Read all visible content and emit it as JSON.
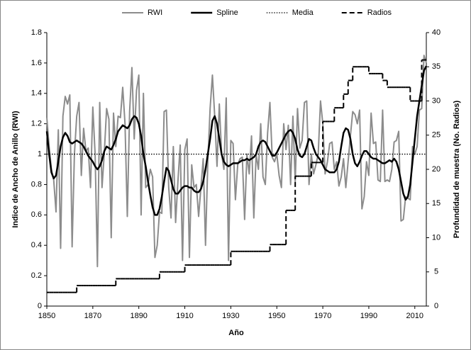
{
  "chart_data": {
    "type": "line",
    "x_label": "Año",
    "y_label": "Indice de Ancho de Anillo (RWI)",
    "y2_label": "Profundidad de muestra (No. Radios)",
    "legend": "top",
    "xlim": [
      1850,
      2015
    ],
    "xticks": [
      1850,
      1870,
      1890,
      1910,
      1930,
      1950,
      1970,
      1990,
      2010
    ],
    "ylim": [
      0,
      1.8
    ],
    "yticks": [
      0,
      0.2,
      0.4,
      0.6,
      0.8,
      1,
      1.2,
      1.4,
      1.6,
      1.8
    ],
    "y2lim": [
      0,
      40
    ],
    "y2ticks": [
      0,
      5,
      10,
      15,
      20,
      25,
      30,
      35,
      40
    ],
    "x": [
      1850,
      1851,
      1852,
      1853,
      1854,
      1855,
      1856,
      1857,
      1858,
      1859,
      1860,
      1861,
      1862,
      1863,
      1864,
      1865,
      1866,
      1867,
      1868,
      1869,
      1870,
      1871,
      1872,
      1873,
      1874,
      1875,
      1876,
      1877,
      1878,
      1879,
      1880,
      1881,
      1882,
      1883,
      1884,
      1885,
      1886,
      1887,
      1888,
      1889,
      1890,
      1891,
      1892,
      1893,
      1894,
      1895,
      1896,
      1897,
      1898,
      1899,
      1900,
      1901,
      1902,
      1903,
      1904,
      1905,
      1906,
      1907,
      1908,
      1909,
      1910,
      1911,
      1912,
      1913,
      1914,
      1915,
      1916,
      1917,
      1918,
      1919,
      1920,
      1921,
      1922,
      1923,
      1924,
      1925,
      1926,
      1927,
      1928,
      1929,
      1930,
      1931,
      1932,
      1933,
      1934,
      1935,
      1936,
      1937,
      1938,
      1939,
      1940,
      1941,
      1942,
      1943,
      1944,
      1945,
      1946,
      1947,
      1948,
      1949,
      1950,
      1951,
      1952,
      1953,
      1954,
      1955,
      1956,
      1957,
      1958,
      1959,
      1960,
      1961,
      1962,
      1963,
      1964,
      1965,
      1966,
      1967,
      1968,
      1969,
      1970,
      1971,
      1972,
      1973,
      1974,
      1975,
      1976,
      1977,
      1978,
      1979,
      1980,
      1981,
      1982,
      1983,
      1984,
      1985,
      1986,
      1987,
      1988,
      1989,
      1990,
      1991,
      1992,
      1993,
      1994,
      1995,
      1996,
      1997,
      1998,
      1999,
      2000,
      2001,
      2002,
      2003,
      2004,
      2005,
      2006,
      2007,
      2008,
      2009,
      2010,
      2011,
      2012,
      2013,
      2014,
      2015
    ],
    "series": [
      {
        "name": "RWI",
        "color": "#8c8c8c",
        "style": "solid",
        "width": 2,
        "values": [
          1.24,
          1.05,
          0.9,
          0.83,
          0.62,
          1.16,
          0.38,
          1.25,
          1.38,
          1.33,
          1.39,
          0.39,
          1.0,
          1.25,
          1.34,
          0.86,
          1.17,
          1.02,
          1.04,
          0.78,
          1.31,
          1.0,
          0.26,
          1.34,
          0.78,
          1.01,
          1.3,
          1.23,
          0.45,
          1.27,
          1.05,
          1.25,
          1.24,
          1.44,
          1.2,
          0.59,
          1.28,
          1.57,
          1.1,
          1.42,
          1.52,
          0.6,
          1.4,
          0.78,
          0.8,
          0.9,
          0.85,
          0.32,
          0.4,
          0.62,
          0.61,
          1.28,
          1.29,
          0.78,
          0.58,
          1.05,
          0.55,
          0.82,
          1.06,
          0.3,
          1.03,
          1.1,
          0.32,
          0.93,
          0.78,
          0.8,
          0.59,
          0.78,
          0.97,
          0.4,
          0.95,
          1.3,
          1.52,
          1.25,
          0.92,
          1.33,
          1.0,
          0.9,
          1.37,
          0.3,
          1.09,
          1.07,
          0.7,
          0.93,
          0.97,
          0.98,
          0.57,
          1.0,
          0.87,
          1.12,
          0.58,
          1.0,
          0.9,
          1.2,
          0.85,
          0.8,
          1.14,
          1.34,
          0.98,
          0.95,
          1.0,
          0.86,
          0.78,
          1.2,
          1.03,
          1.19,
          0.8,
          1.25,
          0.82,
          1.3,
          1.04,
          1.09,
          1.34,
          1.35,
          0.8,
          1.0,
          0.87,
          0.93,
          1.0,
          1.35,
          1.2,
          0.87,
          0.95,
          1.07,
          1.08,
          0.9,
          0.95,
          0.79,
          0.85,
          0.97,
          0.78,
          0.95,
          1.12,
          1.28,
          1.26,
          1.2,
          1.29,
          0.64,
          0.72,
          0.95,
          0.86,
          1.27,
          1.07,
          1.08,
          0.83,
          0.82,
          1.29,
          0.82,
          0.83,
          0.82,
          0.9,
          1.08,
          1.09,
          1.15,
          0.56,
          0.57,
          0.72,
          0.71,
          0.7,
          1.05,
          1.0,
          1.05,
          1.29,
          1.3,
          1.65,
          1.6
        ]
      },
      {
        "name": "Spline",
        "color": "#000000",
        "style": "solid",
        "width": 2.5,
        "values": [
          1.15,
          1.0,
          0.88,
          0.84,
          0.86,
          0.95,
          1.05,
          1.11,
          1.14,
          1.12,
          1.08,
          1.07,
          1.08,
          1.09,
          1.08,
          1.07,
          1.05,
          1.02,
          0.99,
          0.97,
          0.95,
          0.92,
          0.9,
          0.92,
          0.96,
          1.02,
          1.05,
          1.04,
          1.03,
          1.06,
          1.1,
          1.15,
          1.17,
          1.19,
          1.18,
          1.17,
          1.19,
          1.23,
          1.25,
          1.24,
          1.2,
          1.12,
          1.0,
          0.92,
          0.82,
          0.73,
          0.65,
          0.6,
          0.6,
          0.64,
          0.72,
          0.82,
          0.91,
          0.89,
          0.83,
          0.77,
          0.74,
          0.74,
          0.76,
          0.78,
          0.79,
          0.79,
          0.78,
          0.78,
          0.76,
          0.75,
          0.75,
          0.77,
          0.82,
          0.9,
          1.0,
          1.1,
          1.22,
          1.25,
          1.2,
          1.1,
          1.0,
          0.95,
          0.93,
          0.92,
          0.93,
          0.94,
          0.94,
          0.94,
          0.95,
          0.96,
          0.96,
          0.97,
          0.96,
          0.97,
          0.98,
          1.0,
          1.05,
          1.08,
          1.09,
          1.08,
          1.05,
          1.02,
          0.99,
          0.99,
          1.01,
          1.04,
          1.07,
          1.1,
          1.13,
          1.15,
          1.16,
          1.14,
          1.1,
          1.03,
          0.99,
          0.98,
          1.0,
          1.05,
          1.1,
          1.09,
          1.04,
          1.0,
          0.98,
          0.96,
          0.93,
          0.9,
          0.89,
          0.88,
          0.88,
          0.88,
          0.9,
          0.95,
          1.05,
          1.14,
          1.17,
          1.16,
          1.1,
          1.0,
          0.94,
          0.92,
          0.95,
          0.99,
          1.02,
          1.02,
          1.0,
          0.98,
          0.97,
          0.97,
          0.96,
          0.95,
          0.94,
          0.94,
          0.95,
          0.96,
          0.95,
          0.97,
          0.95,
          0.9,
          0.82,
          0.74,
          0.7,
          0.72,
          0.8,
          0.95,
          1.1,
          1.25,
          1.35,
          1.45,
          1.55,
          1.58
        ]
      },
      {
        "name": "Media",
        "color": "#000000",
        "style": "dotted",
        "width": 1.3,
        "value": 1
      },
      {
        "name": "Radios",
        "color": "#000000",
        "style": "dashed",
        "width": 2,
        "axis": "y2",
        "step": true,
        "values": [
          2,
          2,
          2,
          2,
          2,
          2,
          2,
          2,
          2,
          2,
          2,
          2,
          2,
          3,
          3,
          3,
          3,
          3,
          3,
          3,
          3,
          3,
          3,
          3,
          3,
          3,
          3,
          3,
          3,
          3,
          4,
          4,
          4,
          4,
          4,
          4,
          4,
          4,
          4,
          4,
          4,
          4,
          4,
          4,
          4,
          4,
          4,
          4,
          4,
          5,
          5,
          5,
          5,
          5,
          5,
          5,
          5,
          5,
          5,
          5,
          6,
          6,
          6,
          6,
          6,
          6,
          6,
          6,
          6,
          6,
          6,
          6,
          6,
          6,
          6,
          6,
          6,
          6,
          6,
          6,
          8,
          8,
          8,
          8,
          8,
          8,
          8,
          8,
          8,
          8,
          8,
          8,
          8,
          8,
          8,
          8,
          8,
          9,
          9,
          9,
          9,
          9,
          9,
          9,
          14,
          14,
          14,
          14,
          19,
          19,
          19,
          19,
          19,
          19,
          19,
          21,
          21,
          21,
          21,
          21,
          27,
          27,
          27,
          27,
          27,
          29,
          29,
          29,
          29,
          31,
          31,
          33,
          33,
          35,
          35,
          35,
          35,
          35,
          35,
          35,
          34,
          34,
          34,
          34,
          34,
          34,
          33,
          33,
          32,
          32,
          32,
          32,
          32,
          32,
          32,
          32,
          32,
          32,
          30,
          30,
          30,
          30,
          30,
          36,
          36,
          36
        ]
      }
    ]
  }
}
